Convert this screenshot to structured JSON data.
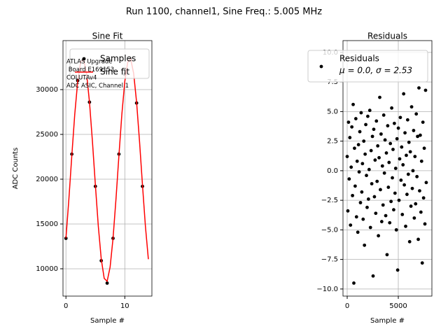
{
  "title": "Run 1100, channel1, Sine Freq.: 5.005 MHz",
  "chart_data": [
    {
      "type": "line",
      "title": "Sine Fit",
      "xlabel": "Sample #",
      "ylabel": "ADC Counts",
      "annotation": [
        "ATLAS Upgrade",
        " Board E169153",
        "COLUTAv4",
        "ADC ASIC, Channel 1"
      ],
      "xlim": [
        -0.5,
        14.6
      ],
      "xticks": [
        0,
        10
      ],
      "ylim": [
        6950,
        35470
      ],
      "yticks": [
        10000,
        15000,
        20000,
        25000,
        30000
      ],
      "grid": true,
      "legend": "upper right",
      "series": [
        {
          "name": "Samples",
          "color": "#000000",
          "marker": true,
          "x": [
            0,
            1,
            2,
            3,
            4,
            5,
            6,
            7,
            8,
            9,
            10,
            11,
            12,
            13
          ],
          "values": [
            13400,
            22800,
            31000,
            33400,
            28600,
            19200,
            10900,
            8400,
            13400,
            22800,
            31700,
            33400,
            28500,
            19200
          ]
        },
        {
          "name": "Sine fit",
          "color": "#ff0000",
          "marker": false,
          "x": [
            0,
            0.5,
            1,
            1.5,
            2,
            2.5,
            3,
            3.5,
            4,
            4.5,
            5,
            5.5,
            6,
            6.5,
            7,
            7.5,
            8,
            8.5,
            9,
            9.5,
            10,
            10.5,
            11,
            11.5,
            12,
            12.5,
            13,
            13.5,
            14
          ],
          "values": [
            13405,
            17783,
            22650,
            27266,
            30929,
            33077,
            33391,
            31819,
            28595,
            24217,
            19350,
            14734,
            11071,
            8923,
            8609,
            10181,
            13405,
            17783,
            22650,
            27266,
            30929,
            33077,
            33391,
            31819,
            28595,
            24217,
            19350,
            14734,
            11071
          ]
        }
      ]
    },
    {
      "type": "scatter",
      "title": "Residuals",
      "xlabel": "Sample #",
      "annotation": [
        "μ = 0.0, σ = 2.53"
      ],
      "xlim": [
        -411,
        8288
      ],
      "xticks": [
        0,
        5000
      ],
      "ylim": [
        -10.6,
        11.0
      ],
      "yticks": [
        {
          "value": -10,
          "label": "−10.0"
        },
        {
          "value": -7.5,
          "label": "−7.5"
        },
        {
          "value": -5,
          "label": "−5.0"
        },
        {
          "value": -2.5,
          "label": "−2.5"
        },
        {
          "value": 0,
          "label": "0.0"
        },
        2.5,
        {
          "value": 5,
          "label": "5.0"
        },
        7.5,
        {
          "value": 10,
          "label": "10.0"
        }
      ],
      "grid": true,
      "legend": "upper right",
      "series": [
        {
          "name": "Residuals",
          "color": "#000000",
          "marker": true,
          "x": [
            0,
            65,
            130,
            195,
            260,
            325,
            390,
            455,
            520,
            585,
            650,
            715,
            780,
            845,
            910,
            975,
            1040,
            1105,
            1170,
            1235,
            1300,
            1365,
            1430,
            1495,
            1560,
            1625,
            1690,
            1755,
            1820,
            1885,
            1950,
            2015,
            2080,
            2145,
            2210,
            2275,
            2340,
            2405,
            2470,
            2535,
            2600,
            2665,
            2730,
            2795,
            2860,
            2925,
            2990,
            3055,
            3120,
            3185,
            3250,
            3315,
            3380,
            3445,
            3510,
            3575,
            3640,
            3705,
            3770,
            3835,
            3900,
            3965,
            4030,
            4095,
            4160,
            4225,
            4290,
            4355,
            4420,
            4485,
            4550,
            4615,
            4680,
            4745,
            4810,
            4875,
            4940,
            5005,
            5070,
            5135,
            5200,
            5265,
            5330,
            5395,
            5460,
            5525,
            5590,
            5655,
            5720,
            5785,
            5850,
            5915,
            5980,
            6045,
            6110,
            6175,
            6240,
            6305,
            6370,
            6435,
            6500,
            6565,
            6630,
            6695,
            6760,
            6825,
            6890,
            6955,
            7020,
            7085,
            7150,
            7215,
            7280,
            7345,
            7410,
            7475,
            7540,
            7605,
            7670,
            7735
          ],
          "values": [
            1.2,
            -3.4,
            4.1,
            -0.7,
            2.8,
            -4.6,
            0.3,
            3.7,
            -2.1,
            5.6,
            -9.5,
            1.9,
            -1.3,
            4.4,
            -3.9,
            0.8,
            -5.2,
            2.2,
            -0.1,
            3.3,
            -2.7,
            4.9,
            -1.8,
            0.6,
            -4.1,
            2.5,
            -6.3,
            1.4,
            3.9,
            -0.4,
            -3.1,
            4.6,
            -2.4,
            0.1,
            5.1,
            -4.8,
            1.7,
            -1.1,
            2.9,
            -8.9,
            3.5,
            -2.2,
            0.9,
            -3.6,
            4.2,
            -0.9,
            2.1,
            -5.5,
            1.1,
            6.2,
            -1.6,
            3.1,
            -4.3,
            0.4,
            -2.9,
            4.7,
            -0.2,
            2.6,
            -3.8,
            1.5,
            -7.1,
            3.8,
            -1.4,
            0.7,
            -4.4,
            2.3,
            -2.6,
            5.3,
            -0.6,
            1.8,
            -3.3,
            4.0,
            -1.9,
            0.2,
            -5.0,
            2.7,
            -8.4,
            3.6,
            -2.5,
            1.0,
            4.5,
            -0.8,
            2.0,
            -3.7,
            0.5,
            6.5,
            -1.2,
            3.2,
            -4.7,
            1.3,
            -2.0,
            4.3,
            -0.3,
            2.4,
            -6.0,
            1.6,
            -3.0,
            5.4,
            -1.5,
            0.0,
            3.4,
            -4.0,
            1.2,
            -2.8,
            4.8,
            -0.5,
            2.9,
            -5.8,
            7.0,
            -1.7,
            3.0,
            -3.5,
            0.8,
            -7.8,
            4.1,
            -2.3,
            1.9,
            -4.5,
            6.8,
            -1.0
          ]
        }
      ]
    }
  ]
}
